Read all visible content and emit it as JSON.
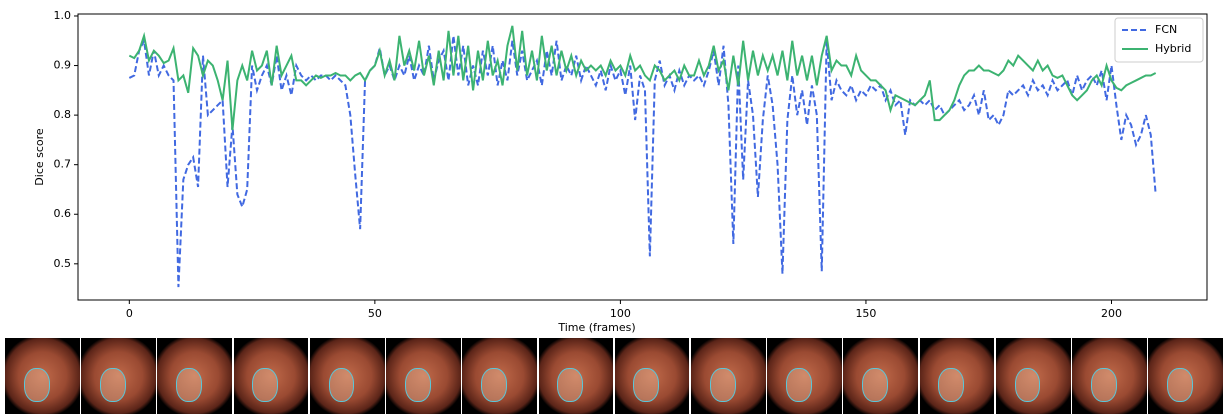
{
  "chart_data": {
    "type": "line",
    "xlabel": "Time (frames)",
    "ylabel": "Dice score",
    "x": [
      0,
      1,
      2,
      3,
      4,
      5,
      6,
      7,
      8,
      9,
      10,
      11,
      12,
      13,
      14,
      15,
      16,
      17,
      18,
      19,
      20,
      21,
      22,
      23,
      24,
      25,
      26,
      27,
      28,
      29,
      30,
      31,
      32,
      33,
      34,
      35,
      36,
      37,
      38,
      39,
      40,
      41,
      42,
      43,
      44,
      45,
      46,
      47,
      48,
      49,
      50,
      51,
      52,
      53,
      54,
      55,
      56,
      57,
      58,
      59,
      60,
      61,
      62,
      63,
      64,
      65,
      66,
      67,
      68,
      69,
      70,
      71,
      72,
      73,
      74,
      75,
      76,
      77,
      78,
      79,
      80,
      81,
      82,
      83,
      84,
      85,
      86,
      87,
      88,
      89,
      90,
      91,
      92,
      93,
      94,
      95,
      96,
      97,
      98,
      99,
      100,
      101,
      102,
      103,
      104,
      105,
      106,
      107,
      108,
      109,
      110,
      111,
      112,
      113,
      114,
      115,
      116,
      117,
      118,
      119,
      120,
      121,
      122,
      123,
      124,
      125,
      126,
      127,
      128,
      129,
      130,
      131,
      132,
      133,
      134,
      135,
      136,
      137,
      138,
      139,
      140,
      141,
      142,
      143,
      144,
      145,
      146,
      147,
      148,
      149,
      150,
      151,
      152,
      153,
      154,
      155,
      156,
      157,
      158,
      159,
      160,
      161,
      162,
      163,
      164,
      165,
      166,
      167,
      168,
      169,
      170,
      171,
      172,
      173,
      174,
      175,
      176,
      177,
      178,
      179,
      180,
      181,
      182,
      183,
      184,
      185,
      186,
      187,
      188,
      189,
      190,
      191,
      192,
      193,
      194,
      195,
      196,
      197,
      198,
      199,
      200,
      201,
      202,
      203,
      204,
      205,
      206,
      207,
      208,
      209
    ],
    "series": [
      {
        "name": "FCN",
        "color": "#4169e1",
        "linestyle": "dashed",
        "values": [
          0.875,
          0.88,
          0.93,
          0.95,
          0.88,
          0.93,
          0.88,
          0.9,
          0.88,
          0.87,
          0.453,
          0.67,
          0.7,
          0.715,
          0.655,
          0.92,
          0.8,
          0.81,
          0.82,
          0.83,
          0.655,
          0.78,
          0.64,
          0.615,
          0.65,
          0.9,
          0.85,
          0.88,
          0.9,
          0.86,
          0.92,
          0.85,
          0.88,
          0.84,
          0.9,
          0.88,
          0.87,
          0.88,
          0.87,
          0.88,
          0.88,
          0.87,
          0.88,
          0.87,
          0.86,
          0.8,
          0.68,
          0.57,
          0.87,
          0.89,
          0.9,
          0.935,
          0.88,
          0.9,
          0.87,
          0.9,
          0.88,
          0.92,
          0.87,
          0.9,
          0.88,
          0.94,
          0.87,
          0.91,
          0.93,
          0.87,
          0.96,
          0.88,
          0.94,
          0.86,
          0.9,
          0.86,
          0.93,
          0.88,
          0.94,
          0.86,
          0.91,
          0.87,
          0.95,
          0.88,
          0.93,
          0.87,
          0.89,
          0.91,
          0.86,
          0.93,
          0.88,
          0.95,
          0.87,
          0.9,
          0.88,
          0.92,
          0.87,
          0.9,
          0.88,
          0.86,
          0.89,
          0.85,
          0.9,
          0.87,
          0.89,
          0.84,
          0.9,
          0.79,
          0.88,
          0.85,
          0.515,
          0.87,
          0.91,
          0.86,
          0.88,
          0.85,
          0.89,
          0.86,
          0.88,
          0.87,
          0.88,
          0.86,
          0.89,
          0.93,
          0.86,
          0.94,
          0.82,
          0.54,
          0.9,
          0.67,
          0.87,
          0.8,
          0.635,
          0.79,
          0.88,
          0.82,
          0.7,
          0.48,
          0.79,
          0.88,
          0.8,
          0.85,
          0.78,
          0.86,
          0.8,
          0.485,
          0.95,
          0.83,
          0.87,
          0.85,
          0.84,
          0.86,
          0.83,
          0.85,
          0.84,
          0.86,
          0.85,
          0.86,
          0.83,
          0.85,
          0.82,
          0.83,
          0.76,
          0.83,
          0.82,
          0.83,
          0.82,
          0.83,
          0.81,
          0.82,
          0.8,
          0.81,
          0.82,
          0.83,
          0.81,
          0.82,
          0.84,
          0.8,
          0.85,
          0.79,
          0.8,
          0.78,
          0.8,
          0.85,
          0.84,
          0.85,
          0.86,
          0.84,
          0.87,
          0.85,
          0.86,
          0.84,
          0.87,
          0.85,
          0.86,
          0.87,
          0.84,
          0.88,
          0.85,
          0.87,
          0.88,
          0.86,
          0.89,
          0.83,
          0.9,
          0.82,
          0.75,
          0.8,
          0.78,
          0.74,
          0.76,
          0.8,
          0.76,
          0.64
        ]
      },
      {
        "name": "Hybrid",
        "color": "#3cb371",
        "linestyle": "solid",
        "values": [
          0.92,
          0.915,
          0.93,
          0.96,
          0.91,
          0.93,
          0.92,
          0.905,
          0.91,
          0.935,
          0.87,
          0.88,
          0.845,
          0.935,
          0.92,
          0.88,
          0.91,
          0.9,
          0.87,
          0.83,
          0.91,
          0.77,
          0.87,
          0.9,
          0.87,
          0.93,
          0.89,
          0.9,
          0.93,
          0.86,
          0.94,
          0.88,
          0.9,
          0.92,
          0.87,
          0.87,
          0.86,
          0.87,
          0.88,
          0.875,
          0.88,
          0.88,
          0.885,
          0.88,
          0.88,
          0.87,
          0.88,
          0.885,
          0.87,
          0.89,
          0.9,
          0.93,
          0.88,
          0.91,
          0.87,
          0.96,
          0.9,
          0.93,
          0.89,
          0.95,
          0.88,
          0.92,
          0.86,
          0.93,
          0.87,
          0.97,
          0.88,
          0.96,
          0.87,
          0.94,
          0.85,
          0.93,
          0.87,
          0.95,
          0.88,
          0.91,
          0.86,
          0.94,
          0.98,
          0.89,
          0.97,
          0.88,
          0.93,
          0.87,
          0.96,
          0.89,
          0.94,
          0.88,
          0.93,
          0.89,
          0.92,
          0.88,
          0.91,
          0.89,
          0.9,
          0.89,
          0.9,
          0.88,
          0.91,
          0.89,
          0.9,
          0.88,
          0.92,
          0.89,
          0.9,
          0.88,
          0.87,
          0.9,
          0.89,
          0.87,
          0.88,
          0.89,
          0.87,
          0.9,
          0.88,
          0.88,
          0.91,
          0.88,
          0.9,
          0.94,
          0.89,
          0.91,
          0.85,
          0.92,
          0.86,
          0.95,
          0.87,
          0.93,
          0.88,
          0.92,
          0.89,
          0.92,
          0.88,
          0.93,
          0.87,
          0.95,
          0.88,
          0.92,
          0.87,
          0.92,
          0.86,
          0.92,
          0.96,
          0.89,
          0.91,
          0.9,
          0.9,
          0.88,
          0.92,
          0.89,
          0.88,
          0.87,
          0.87,
          0.86,
          0.85,
          0.81,
          0.84,
          0.835,
          0.83,
          0.825,
          0.82,
          0.83,
          0.84,
          0.87,
          0.79,
          0.79,
          0.8,
          0.81,
          0.83,
          0.86,
          0.88,
          0.89,
          0.89,
          0.9,
          0.89,
          0.89,
          0.885,
          0.88,
          0.89,
          0.91,
          0.9,
          0.92,
          0.91,
          0.9,
          0.89,
          0.91,
          0.89,
          0.9,
          0.88,
          0.875,
          0.88,
          0.86,
          0.84,
          0.83,
          0.84,
          0.85,
          0.87,
          0.88,
          0.86,
          0.9,
          0.87,
          0.855,
          0.85,
          0.86,
          0.865,
          0.87,
          0.875,
          0.88,
          0.88,
          0.885
        ]
      }
    ],
    "xlim": [
      -10.45,
      219.45
    ],
    "xticks": [
      0,
      50,
      100,
      150,
      200
    ],
    "ylim": [
      0.427,
      1.004
    ],
    "yticks": [
      0.5,
      0.6,
      0.7,
      0.8,
      0.9,
      {
        "value": 1.0,
        "label": "1.0"
      }
    ],
    "grid": false,
    "legend": "upper right"
  }
}
